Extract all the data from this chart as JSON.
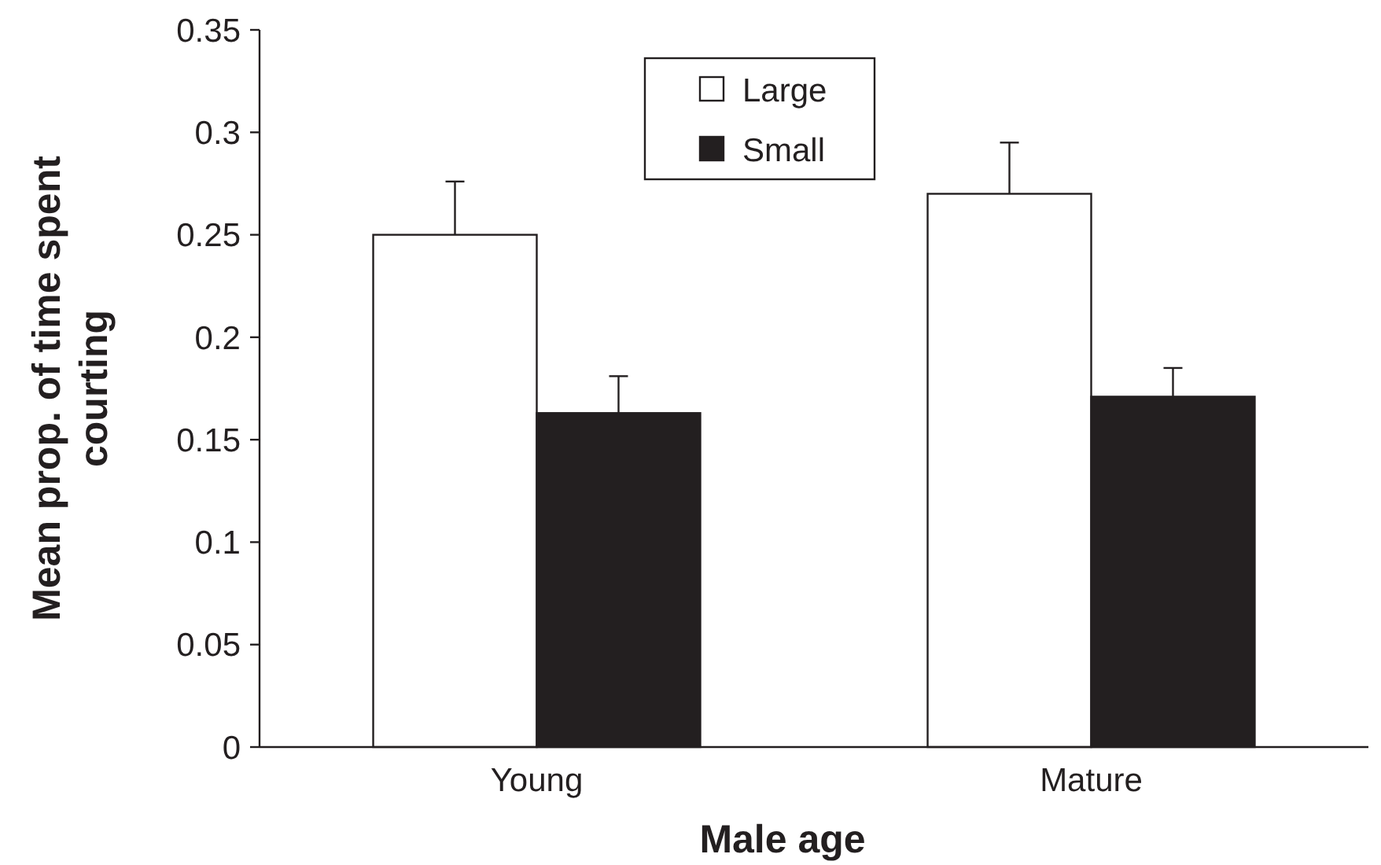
{
  "chart_data": {
    "type": "bar",
    "xlabel": "Male age",
    "ylabel": "Mean prop. of time spent courting",
    "categories": [
      "Young",
      "Mature"
    ],
    "series": [
      {
        "name": "Large",
        "color": "#ffffff",
        "values": [
          0.25,
          0.27
        ],
        "errors": [
          [
            0.25,
            0.276
          ],
          [
            0.27,
            0.295
          ]
        ]
      },
      {
        "name": "Small",
        "color": "#231f20",
        "values": [
          0.163,
          0.171
        ],
        "errors": [
          [
            0.163,
            0.181
          ],
          [
            0.171,
            0.185
          ]
        ]
      }
    ],
    "ylim": [
      0,
      0.35
    ],
    "yticks": [
      0,
      0.05,
      0.1,
      0.15,
      0.2,
      0.25,
      0.3,
      0.35
    ],
    "legend": "top",
    "grid": false
  }
}
